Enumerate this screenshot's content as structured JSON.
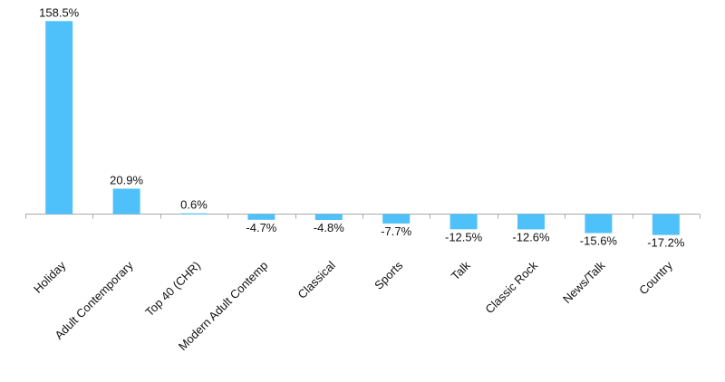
{
  "chart_data": {
    "type": "bar",
    "categories": [
      "Holiday",
      "Adult Contemporary",
      "Top 40 (CHR)",
      "Modern Adult Contemp",
      "Classical",
      "Sports",
      "Talk",
      "Classic Rock",
      "News/Talk",
      "Country"
    ],
    "values": [
      158.5,
      20.9,
      0.6,
      -4.7,
      -4.8,
      -7.7,
      -12.5,
      -12.6,
      -15.6,
      -17.2
    ],
    "data_labels": [
      "158.5%",
      "20.9%",
      "0.6%",
      "-4.7%",
      "-4.8%",
      "-7.7%",
      "-12.5%",
      "-12.6%",
      "-15.6%",
      "-17.2%"
    ],
    "value_unit": "%",
    "title": "",
    "xlabel": "",
    "ylabel": "",
    "ylim": [
      -20,
      160
    ],
    "grid": false,
    "legend": "none",
    "bar_color": "#4FC1FA",
    "axis_color": "#AAAAAA",
    "text_color": "#111111"
  }
}
